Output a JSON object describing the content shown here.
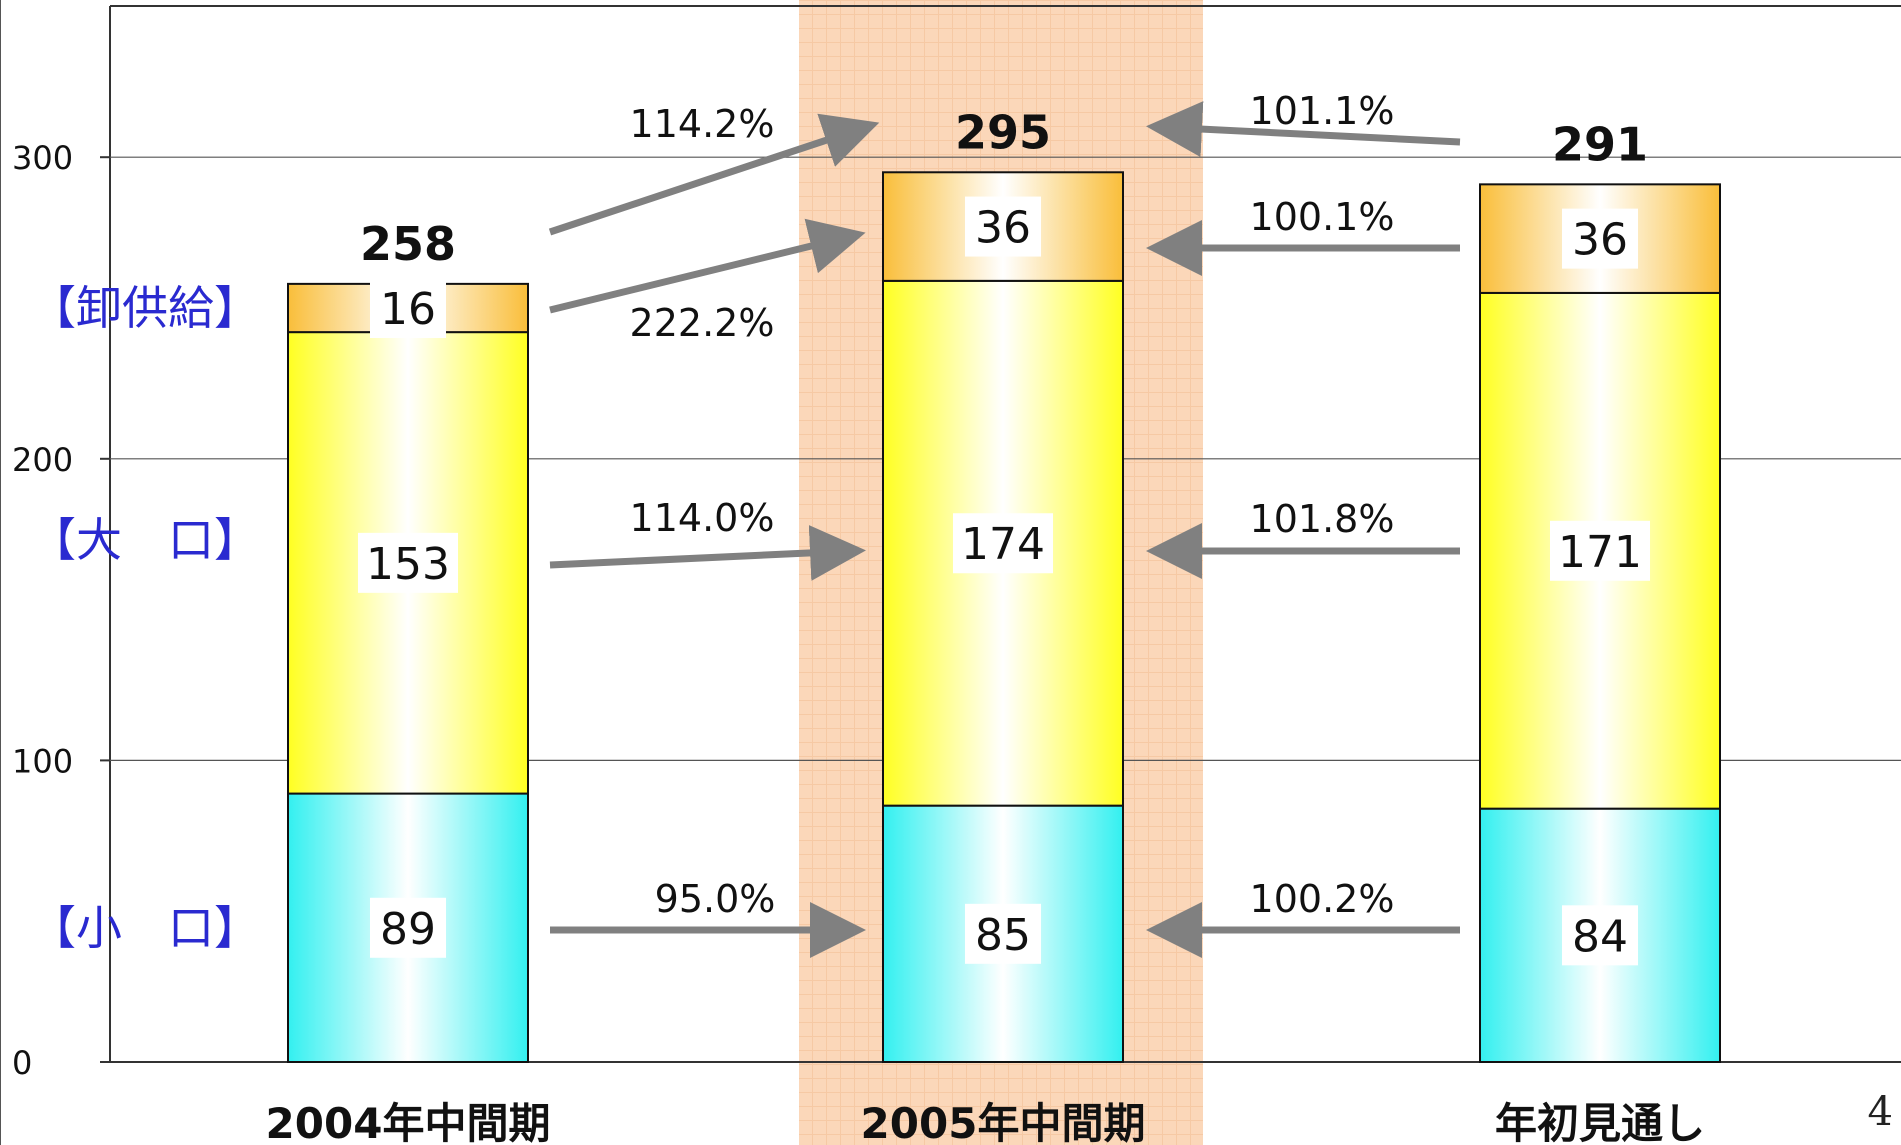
{
  "chart_data": {
    "type": "bar",
    "stacked": true,
    "categories": [
      "2004年中間期",
      "2005年中間期",
      "年初見通し"
    ],
    "series": [
      {
        "name": "【小　口】",
        "values": [
          89,
          85,
          84
        ]
      },
      {
        "name": "【大　口】",
        "values": [
          153,
          174,
          171
        ]
      },
      {
        "name": "【卸供給】",
        "values": [
          16,
          36,
          36
        ]
      }
    ],
    "totals": [
      258,
      295,
      291
    ],
    "ylim": [
      0,
      350
    ],
    "yticks": [
      0,
      100,
      200,
      300
    ],
    "grid": true,
    "highlight_category": "2005年中間期",
    "comparisons": {
      "from_2004": {
        "total": "114.2%",
        "wholesale": "222.2%",
        "large": "114.0%",
        "small": "95.0%"
      },
      "from_forecast": {
        "total": "101.1%",
        "wholesale": "100.1%",
        "large": "101.8%",
        "small": "100.2%"
      }
    }
  },
  "page_number": "4",
  "colors": {
    "small_dark": "#33F0F0",
    "small_light": "#FFFFFF",
    "large_dark": "#FFFF22",
    "large_light": "#FFFFFF",
    "wholesale_dark": "#F9BE3A",
    "wholesale_light": "#FFFFFF",
    "highlight_band": "#FBD7B9",
    "arrow": "#808080",
    "legend_text": "#2A2AD0",
    "grid": "#555555"
  }
}
